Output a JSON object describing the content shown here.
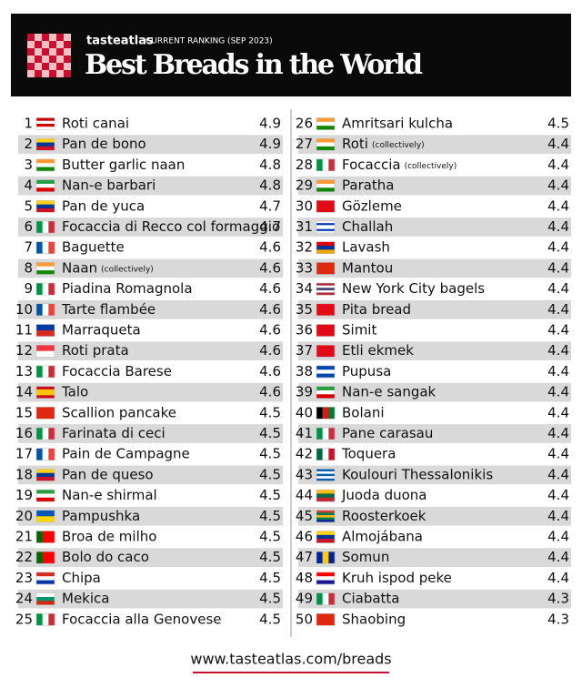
{
  "header": {
    "brand": "tasteatlas",
    "subtitle": "CURRENT RANKING (SEP 2023)",
    "title": "Best Breads in the World"
  },
  "rankings": [
    {
      "rank": 1,
      "name": "Roti canai",
      "score": 4.9,
      "flag": {
        "colors": [
          "#cc0001",
          "#ffffff",
          "#cc0001",
          "#ffffff"
        ]
      }
    },
    {
      "rank": 2,
      "name": "Pan de bono",
      "score": 4.9,
      "flag": {
        "colors": [
          "#fcd116",
          "#003893",
          "#ce1126"
        ]
      }
    },
    {
      "rank": 3,
      "name": "Butter garlic naan",
      "score": 4.8,
      "flag": {
        "colors": [
          "#ff9933",
          "#ffffff",
          "#138808"
        ]
      }
    },
    {
      "rank": 4,
      "name": "Nan-e barbari",
      "score": 4.8,
      "flag": {
        "colors": [
          "#239f40",
          "#ffffff",
          "#da0000"
        ]
      }
    },
    {
      "rank": 5,
      "name": "Pan de yuca",
      "score": 4.7,
      "flag": {
        "colors": [
          "#fcd116",
          "#003893",
          "#ce1126"
        ]
      }
    },
    {
      "rank": 6,
      "name": "Focaccia di Recco col formaggio",
      "score": 4.7,
      "flag": {
        "colors": [
          "#009246",
          "#ffffff",
          "#ce2b37"
        ],
        "vertical": true
      }
    },
    {
      "rank": 7,
      "name": "Baguette",
      "score": 4.6,
      "flag": {
        "colors": [
          "#0055a4",
          "#ffffff",
          "#ef4135"
        ],
        "vertical": true
      }
    },
    {
      "rank": 8,
      "name": "Naan",
      "note": "(collectively)",
      "score": 4.6,
      "flag": {
        "colors": [
          "#ff9933",
          "#ffffff",
          "#138808"
        ]
      }
    },
    {
      "rank": 9,
      "name": "Piadina Romagnola",
      "score": 4.6,
      "flag": {
        "colors": [
          "#009246",
          "#ffffff",
          "#ce2b37"
        ],
        "vertical": true
      }
    },
    {
      "rank": 10,
      "name": "Tarte flambée",
      "score": 4.6,
      "flag": {
        "colors": [
          "#0055a4",
          "#ffffff",
          "#ef4135"
        ],
        "vertical": true
      }
    },
    {
      "rank": 11,
      "name": "Marraqueta",
      "score": 4.6,
      "flag": {
        "colors": [
          "#0039a6",
          "#d52b1e"
        ]
      }
    },
    {
      "rank": 12,
      "name": "Roti prata",
      "score": 4.6,
      "flag": {
        "colors": [
          "#ef3340",
          "#ffffff"
        ]
      }
    },
    {
      "rank": 13,
      "name": "Focaccia Barese",
      "score": 4.6,
      "flag": {
        "colors": [
          "#009246",
          "#ffffff",
          "#ce2b37"
        ],
        "vertical": true
      }
    },
    {
      "rank": 14,
      "name": "Talo",
      "score": 4.6,
      "flag": {
        "colors": [
          "#c60b1e",
          "#ffc400",
          "#ffc400",
          "#c60b1e"
        ]
      }
    },
    {
      "rank": 15,
      "name": "Scallion pancake",
      "score": 4.5,
      "flag": {
        "colors": [
          "#de2910"
        ]
      }
    },
    {
      "rank": 16,
      "name": "Farinata di ceci",
      "score": 4.5,
      "flag": {
        "colors": [
          "#009246",
          "#ffffff",
          "#ce2b37"
        ],
        "vertical": true
      }
    },
    {
      "rank": 17,
      "name": "Pain de Campagne",
      "score": 4.5,
      "flag": {
        "colors": [
          "#0055a4",
          "#ffffff",
          "#ef4135"
        ],
        "vertical": true
      }
    },
    {
      "rank": 18,
      "name": "Pan de queso",
      "score": 4.5,
      "flag": {
        "colors": [
          "#fcd116",
          "#003893",
          "#ce1126"
        ]
      }
    },
    {
      "rank": 19,
      "name": "Nan-e shirmal",
      "score": 4.5,
      "flag": {
        "colors": [
          "#239f40",
          "#ffffff",
          "#da0000"
        ]
      }
    },
    {
      "rank": 20,
      "name": "Pampushka",
      "score": 4.5,
      "flag": {
        "colors": [
          "#0057b7",
          "#ffd700"
        ]
      }
    },
    {
      "rank": 21,
      "name": "Broa de milho",
      "score": 4.5,
      "flag": {
        "colors": [
          "#006600",
          "#ff0000",
          "#ff0000"
        ],
        "vertical": true
      }
    },
    {
      "rank": 22,
      "name": "Bolo do caco",
      "score": 4.5,
      "flag": {
        "colors": [
          "#006600",
          "#ff0000",
          "#ff0000"
        ],
        "vertical": true
      }
    },
    {
      "rank": 23,
      "name": "Chipa",
      "score": 4.5,
      "flag": {
        "colors": [
          "#d52b1e",
          "#ffffff",
          "#0038a8"
        ]
      }
    },
    {
      "rank": 24,
      "name": "Mekica",
      "score": 4.5,
      "flag": {
        "colors": [
          "#ffffff",
          "#00966e",
          "#d62612"
        ]
      }
    },
    {
      "rank": 25,
      "name": "Focaccia alla Genovese",
      "score": 4.5,
      "flag": {
        "colors": [
          "#009246",
          "#ffffff",
          "#ce2b37"
        ],
        "vertical": true
      }
    },
    {
      "rank": 26,
      "name": "Amritsari kulcha",
      "score": 4.5,
      "flag": {
        "colors": [
          "#ff9933",
          "#ffffff",
          "#138808"
        ]
      }
    },
    {
      "rank": 27,
      "name": "Roti",
      "note": "(collectively)",
      "score": 4.4,
      "flag": {
        "colors": [
          "#ff9933",
          "#ffffff",
          "#138808"
        ]
      }
    },
    {
      "rank": 28,
      "name": "Focaccia",
      "note": "(collectively)",
      "score": 4.4,
      "flag": {
        "colors": [
          "#009246",
          "#ffffff",
          "#ce2b37"
        ],
        "vertical": true
      }
    },
    {
      "rank": 29,
      "name": "Paratha",
      "score": 4.4,
      "flag": {
        "colors": [
          "#ff9933",
          "#ffffff",
          "#138808"
        ]
      }
    },
    {
      "rank": 30,
      "name": "Gözleme",
      "score": 4.4,
      "flag": {
        "colors": [
          "#e30a17"
        ]
      }
    },
    {
      "rank": 31,
      "name": "Challah",
      "score": 4.4,
      "flag": {
        "colors": [
          "#ffffff",
          "#0038b8",
          "#ffffff",
          "#ffffff",
          "#0038b8",
          "#ffffff"
        ]
      }
    },
    {
      "rank": 32,
      "name": "Lavash",
      "score": 4.4,
      "flag": {
        "colors": [
          "#d90012",
          "#0033a0",
          "#f2a800"
        ]
      }
    },
    {
      "rank": 33,
      "name": "Mantou",
      "score": 4.4,
      "flag": {
        "colors": [
          "#de2910"
        ]
      }
    },
    {
      "rank": 34,
      "name": "New York City bagels",
      "score": 4.4,
      "flag": {
        "colors": [
          "#b22234",
          "#ffffff",
          "#3c3b6e",
          "#ffffff",
          "#b22234"
        ]
      }
    },
    {
      "rank": 35,
      "name": "Pita bread",
      "score": 4.4,
      "flag": {
        "colors": [
          "#e30a17"
        ]
      }
    },
    {
      "rank": 36,
      "name": "Simit",
      "score": 4.4,
      "flag": {
        "colors": [
          "#e30a17"
        ]
      }
    },
    {
      "rank": 37,
      "name": "Etli ekmek",
      "score": 4.4,
      "flag": {
        "colors": [
          "#e30a17"
        ]
      }
    },
    {
      "rank": 38,
      "name": "Pupusa",
      "score": 4.4,
      "flag": {
        "colors": [
          "#0047ab",
          "#ffffff",
          "#0047ab"
        ]
      }
    },
    {
      "rank": 39,
      "name": "Nan-e sangak",
      "score": 4.4,
      "flag": {
        "colors": [
          "#239f40",
          "#ffffff",
          "#da0000"
        ]
      }
    },
    {
      "rank": 40,
      "name": "Bolani",
      "score": 4.4,
      "flag": {
        "colors": [
          "#000000",
          "#d32011",
          "#007a36"
        ],
        "vertical": true
      }
    },
    {
      "rank": 41,
      "name": "Pane carasau",
      "score": 4.4,
      "flag": {
        "colors": [
          "#009246",
          "#ffffff",
          "#ce2b37"
        ],
        "vertical": true
      }
    },
    {
      "rank": 42,
      "name": "Toquera",
      "score": 4.4,
      "flag": {
        "colors": [
          "#006847",
          "#ffffff",
          "#ce1126"
        ],
        "vertical": true
      }
    },
    {
      "rank": 43,
      "name": "Koulouri Thessalonikis",
      "score": 4.4,
      "flag": {
        "colors": [
          "#0d5eaf",
          "#ffffff",
          "#0d5eaf",
          "#ffffff",
          "#0d5eaf"
        ]
      }
    },
    {
      "rank": 44,
      "name": "Juoda duona",
      "score": 4.4,
      "flag": {
        "colors": [
          "#fdb913",
          "#006a44",
          "#c1272d"
        ]
      }
    },
    {
      "rank": 45,
      "name": "Roosterkoek",
      "score": 4.4,
      "flag": {
        "colors": [
          "#de3831",
          "#007a4d",
          "#ffb612",
          "#007a4d",
          "#002395"
        ]
      }
    },
    {
      "rank": 46,
      "name": "Almojábana",
      "score": 4.4,
      "flag": {
        "colors": [
          "#fcd116",
          "#003893",
          "#ce1126"
        ]
      }
    },
    {
      "rank": 47,
      "name": "Somun",
      "score": 4.4,
      "flag": {
        "colors": [
          "#002395",
          "#fecb00",
          "#002395"
        ],
        "vertical": true
      }
    },
    {
      "rank": 48,
      "name": "Kruh ispod peke",
      "score": 4.4,
      "flag": {
        "colors": [
          "#ff0000",
          "#ffffff",
          "#171796"
        ]
      }
    },
    {
      "rank": 49,
      "name": "Ciabatta",
      "score": 4.3,
      "flag": {
        "colors": [
          "#009246",
          "#ffffff",
          "#ce2b37"
        ],
        "vertical": true
      }
    },
    {
      "rank": 50,
      "name": "Shaobing",
      "score": 4.3,
      "flag": {
        "colors": [
          "#de2910"
        ]
      }
    }
  ],
  "footer": {
    "url": "www.tasteatlas.com/breads"
  }
}
